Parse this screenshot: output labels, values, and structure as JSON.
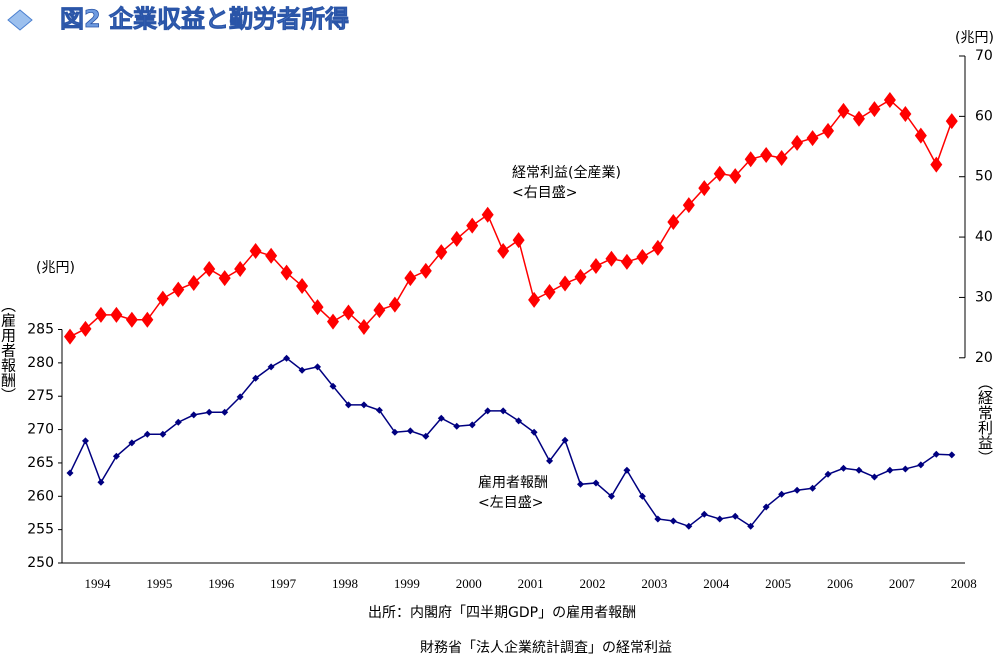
{
  "chart_data": {
    "type": "line",
    "title": "図2 企業収益と勤労者所得",
    "y_unit": "(兆円)",
    "y_label": "（雇用者報酬）",
    "y2_unit": "(兆円)",
    "y2_label": "（経常利益）",
    "source": [
      "出所：内閣府「四半期GDP」の雇用者報酬",
      "財務省「法人企業統計調査」の経常利益"
    ],
    "categories": [
      null,
      "1994",
      null,
      null,
      null,
      "1995",
      null,
      null,
      null,
      "1996",
      null,
      null,
      null,
      "1997",
      null,
      null,
      null,
      "1998",
      null,
      null,
      null,
      "1999",
      null,
      null,
      null,
      "2000",
      null,
      null,
      null,
      "2001",
      null,
      null,
      null,
      "2002",
      null,
      null,
      null,
      "2003",
      null,
      null,
      null,
      "2004",
      null,
      null,
      null,
      "2005",
      null,
      null,
      null,
      "2006",
      null,
      null,
      null,
      "2007",
      null,
      null,
      null,
      "2008"
    ],
    "ylim": [
      250,
      326
    ],
    "yticks": [
      250,
      255,
      260,
      265,
      270,
      275,
      280,
      285
    ],
    "y2lim": [
      -14,
      70
    ],
    "y2ticks": [
      20,
      30,
      40,
      50,
      60,
      70
    ],
    "series": [
      {
        "name": "経常利益(全産業)",
        "scale": "<右目盛>",
        "color": "#ff0000",
        "axis": "y2",
        "values": [
          23.5,
          24.8,
          27.1,
          27.1,
          26.3,
          26.3,
          29.8,
          31.3,
          32.4,
          34.7,
          33.2,
          34.7,
          37.7,
          36.9,
          34.1,
          31.9,
          28.4,
          26.0,
          27.5,
          25.1,
          27.9,
          28.8,
          33.2,
          34.4,
          37.5,
          39.7,
          41.9,
          43.7,
          37.7,
          39.5,
          29.6,
          30.9,
          32.3,
          33.4,
          35.2,
          36.4,
          35.9,
          36.7,
          38.2,
          42.5,
          45.3,
          48.1,
          50.5,
          50.1,
          52.9,
          53.6,
          53.1,
          55.6,
          56.4,
          57.6,
          60.9,
          59.6,
          61.2,
          62.7,
          60.4,
          56.8,
          52.0,
          59.2
        ]
      },
      {
        "name": "雇用者報酬",
        "scale": "<左目盛>",
        "color": "#000080",
        "axis": "y",
        "values": [
          263.5,
          268.3,
          262.1,
          266.0,
          268.0,
          269.3,
          269.3,
          271.1,
          272.2,
          272.6,
          272.6,
          274.9,
          277.7,
          279.4,
          280.7,
          278.9,
          279.4,
          276.5,
          273.7,
          273.7,
          272.9,
          269.6,
          269.8,
          269.0,
          271.7,
          270.5,
          270.7,
          272.8,
          272.8,
          271.3,
          269.6,
          265.3,
          268.4,
          261.8,
          262.0,
          260.0,
          263.9,
          260.0,
          256.6,
          256.3,
          255.5,
          257.3,
          256.6,
          257.0,
          255.5,
          258.4,
          260.3,
          260.9,
          261.2,
          263.3,
          264.2,
          263.9,
          262.9,
          263.9,
          264.1,
          264.7,
          266.3,
          266.2
        ]
      }
    ]
  }
}
